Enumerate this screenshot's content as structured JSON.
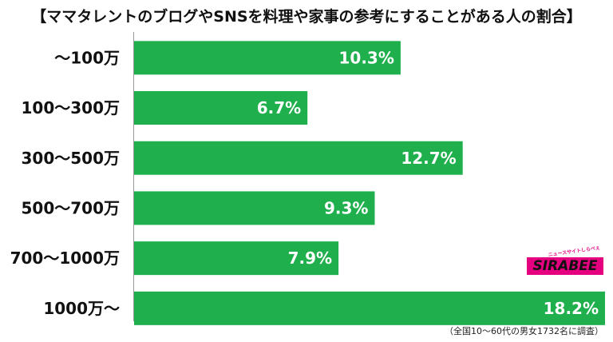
{
  "chart_data": {
    "type": "bar",
    "orientation": "horizontal",
    "title": "【ママタレントのブログやSNSを料理や家事の参考にすることがある人の割合】",
    "categories": [
      "～100万",
      "100～300万",
      "300～500万",
      "500～700万",
      "700～1000万",
      "1000万～"
    ],
    "values": [
      10.3,
      6.7,
      12.7,
      9.3,
      7.9,
      18.2
    ],
    "value_labels": [
      "10.3%",
      "6.7%",
      "12.7%",
      "9.3%",
      "7.9%",
      "18.2%"
    ],
    "xlim": [
      0,
      18.2
    ],
    "grid": false,
    "bar_color": "#1fb04d"
  },
  "footnote": "（全国10～60代の男女1732名に調査）",
  "logo": {
    "text": "SIRABEE",
    "tagline": "ニュースサイトしらべぇ",
    "color": "#e5007f"
  }
}
